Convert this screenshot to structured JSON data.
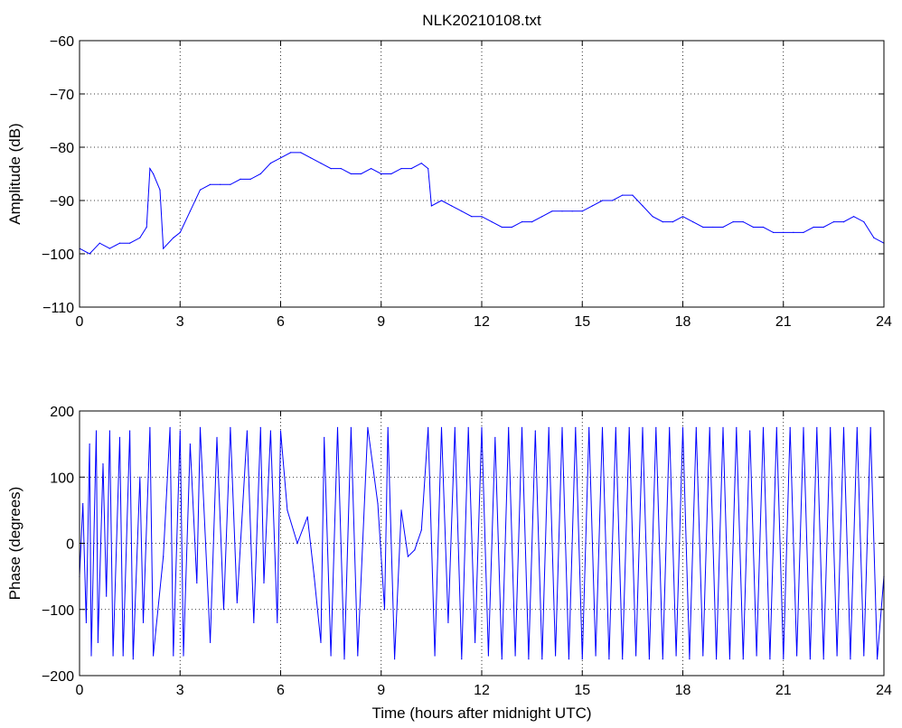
{
  "figure": {
    "title": "NLK20210108.txt",
    "line_color": "#0000ff"
  },
  "chart_data": [
    {
      "type": "line",
      "title": "NLK20210108.txt",
      "xlabel": "",
      "ylabel": "Amplitude (dB)",
      "xlim": [
        0,
        24
      ],
      "ylim": [
        -110,
        -60
      ],
      "xticks": [
        0,
        3,
        6,
        9,
        12,
        15,
        18,
        21,
        24
      ],
      "yticks": [
        -110,
        -100,
        -90,
        -80,
        -70,
        -60
      ],
      "grid": true,
      "series": [
        {
          "x": [
            0,
            0.3,
            0.6,
            0.9,
            1.2,
            1.5,
            1.8,
            2.0,
            2.1,
            2.2,
            2.4,
            2.5,
            2.8,
            3.0,
            3.3,
            3.6,
            3.9,
            4.2,
            4.5,
            4.8,
            5.1,
            5.4,
            5.7,
            6.0,
            6.3,
            6.6,
            6.9,
            7.2,
            7.5,
            7.8,
            8.1,
            8.4,
            8.7,
            9.0,
            9.3,
            9.6,
            9.9,
            10.2,
            10.4,
            10.5,
            10.8,
            11.1,
            11.4,
            11.7,
            12.0,
            12.3,
            12.6,
            12.9,
            13.2,
            13.5,
            13.8,
            14.1,
            14.4,
            14.7,
            15.0,
            15.3,
            15.6,
            15.9,
            16.2,
            16.5,
            16.8,
            17.1,
            17.4,
            17.7,
            18.0,
            18.3,
            18.6,
            18.9,
            19.2,
            19.5,
            19.8,
            20.1,
            20.4,
            20.7,
            21.0,
            21.3,
            21.6,
            21.9,
            22.2,
            22.5,
            22.8,
            23.1,
            23.4,
            23.7,
            24.0
          ],
          "y": [
            -99,
            -100,
            -98,
            -99,
            -98,
            -98,
            -97,
            -95,
            -84,
            -85,
            -88,
            -99,
            -97,
            -96,
            -92,
            -88,
            -87,
            -87,
            -87,
            -86,
            -86,
            -85,
            -83,
            -82,
            -81,
            -81,
            -82,
            -83,
            -84,
            -84,
            -85,
            -85,
            -84,
            -85,
            -85,
            -84,
            -84,
            -83,
            -84,
            -91,
            -90,
            -91,
            -92,
            -93,
            -93,
            -94,
            -95,
            -95,
            -94,
            -94,
            -93,
            -92,
            -92,
            -92,
            -92,
            -91,
            -90,
            -90,
            -89,
            -89,
            -91,
            -93,
            -94,
            -94,
            -93,
            -94,
            -95,
            -95,
            -95,
            -94,
            -94,
            -95,
            -95,
            -96,
            -96,
            -96,
            -96,
            -95,
            -95,
            -94,
            -94,
            -93,
            -94,
            -97,
            -98
          ]
        }
      ]
    },
    {
      "type": "line",
      "title": "",
      "xlabel": "Time (hours after midnight UTC)",
      "ylabel": "Phase (degrees)",
      "xlim": [
        0,
        24
      ],
      "ylim": [
        -200,
        200
      ],
      "xticks": [
        0,
        3,
        6,
        9,
        12,
        15,
        18,
        21,
        24
      ],
      "yticks": [
        -200,
        -100,
        0,
        100,
        200
      ],
      "grid": true,
      "series": [
        {
          "x": [
            0,
            0.1,
            0.2,
            0.3,
            0.35,
            0.5,
            0.55,
            0.7,
            0.8,
            0.9,
            1.0,
            1.2,
            1.3,
            1.5,
            1.6,
            1.8,
            1.9,
            2.1,
            2.2,
            2.5,
            2.7,
            2.8,
            3.0,
            3.1,
            3.3,
            3.5,
            3.6,
            3.9,
            4.1,
            4.3,
            4.5,
            4.7,
            5.0,
            5.2,
            5.4,
            5.5,
            5.7,
            5.9,
            6.0,
            6.2,
            6.5,
            6.8,
            7.0,
            7.2,
            7.3,
            7.5,
            7.7,
            7.9,
            8.1,
            8.3,
            8.6,
            8.9,
            9.1,
            9.2,
            9.4,
            9.6,
            9.8,
            10.0,
            10.2,
            10.4,
            10.6,
            10.8,
            11.0,
            11.2,
            11.4,
            11.6,
            11.8,
            12.0,
            12.2,
            12.4,
            12.6,
            12.8,
            13.0,
            13.2,
            13.4,
            13.6,
            13.8,
            14.0,
            14.2,
            14.4,
            14.6,
            14.8,
            15.0,
            15.2,
            15.4,
            15.6,
            15.8,
            16.0,
            16.2,
            16.4,
            16.6,
            16.8,
            17.0,
            17.2,
            17.4,
            17.6,
            17.8,
            18.0,
            18.2,
            18.4,
            18.6,
            18.8,
            19.0,
            19.2,
            19.4,
            19.6,
            19.8,
            20.0,
            20.2,
            20.4,
            20.6,
            20.8,
            21.0,
            21.2,
            21.4,
            21.6,
            21.8,
            22.0,
            22.2,
            22.4,
            22.6,
            22.8,
            23.0,
            23.2,
            23.4,
            23.6,
            23.8,
            24.0
          ],
          "y": [
            -50,
            60,
            -120,
            150,
            -170,
            170,
            -150,
            120,
            -80,
            170,
            -170,
            160,
            -170,
            170,
            -175,
            100,
            -120,
            175,
            -170,
            -20,
            175,
            -170,
            170,
            -170,
            150,
            -60,
            175,
            -150,
            160,
            -100,
            175,
            -90,
            170,
            -120,
            175,
            -60,
            170,
            -120,
            170,
            50,
            0,
            40,
            -50,
            -150,
            160,
            -170,
            175,
            -175,
            175,
            -170,
            175,
            60,
            -100,
            175,
            -175,
            50,
            -20,
            -10,
            20,
            175,
            -170,
            175,
            -120,
            175,
            -175,
            175,
            -150,
            175,
            -170,
            160,
            -175,
            175,
            -170,
            175,
            -175,
            170,
            -175,
            175,
            -170,
            175,
            -175,
            175,
            -175,
            175,
            -170,
            175,
            -175,
            175,
            -175,
            175,
            -170,
            175,
            -175,
            175,
            -175,
            175,
            -170,
            175,
            -175,
            175,
            -170,
            175,
            -175,
            175,
            -175,
            175,
            -175,
            170,
            -170,
            175,
            -175,
            175,
            -175,
            175,
            -170,
            175,
            -175,
            175,
            -175,
            175,
            -170,
            175,
            -175,
            175,
            -170,
            175,
            -175,
            -50
          ]
        }
      ]
    }
  ]
}
